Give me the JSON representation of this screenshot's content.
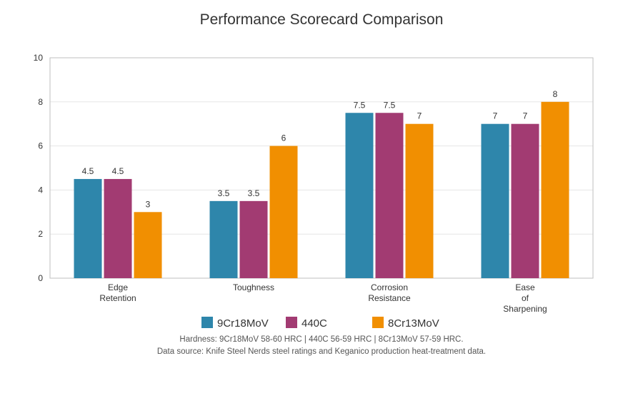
{
  "chart_data": {
    "type": "bar",
    "title": "Performance Scorecard Comparison",
    "categories": [
      [
        "Edge",
        "Retention"
      ],
      [
        "Toughness"
      ],
      [
        "Corrosion",
        "Resistance"
      ],
      [
        "Ease",
        "of",
        "Sharpening"
      ]
    ],
    "series": [
      {
        "name": "9Cr18MoV",
        "color": "#2e86ab",
        "values": [
          4.5,
          3.5,
          7.5,
          7
        ]
      },
      {
        "name": "440C",
        "color": "#a23b72",
        "values": [
          4.5,
          3.5,
          7.5,
          7
        ]
      },
      {
        "name": "8Cr13MoV",
        "color": "#f18f01",
        "values": [
          3,
          6,
          7,
          8
        ]
      }
    ],
    "ylim": [
      0,
      10
    ],
    "yticks": [
      0,
      2,
      4,
      6,
      8,
      10
    ],
    "grid": true,
    "legend": "bottom",
    "notes": [
      "Hardness: 9Cr18MoV 58-60 HRC | 440C 56-59 HRC | 8Cr13MoV 57-59 HRC.",
      "Data source: Knife Steel Nerds steel ratings and Keganico production heat-treatment data."
    ]
  }
}
